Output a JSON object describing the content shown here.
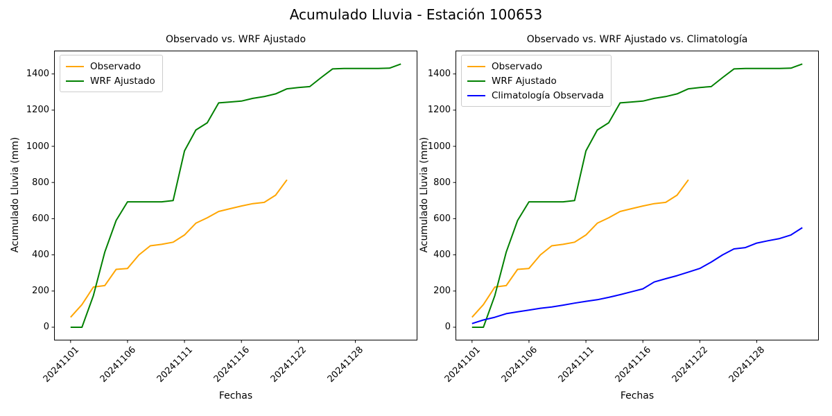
{
  "figure": {
    "suptitle": "Acumulado Lluvia - Estación 100653",
    "background": "#ffffff",
    "spine_color": "#000000",
    "legend_border_color": "#cccccc"
  },
  "chart_data": [
    {
      "type": "line",
      "title": "Observado vs. WRF Ajustado",
      "xlabel": "Fechas",
      "ylabel": "Acumulado Lluvia (mm)",
      "ylim": [
        -73,
        1529
      ],
      "xlim": [
        -1.45,
        30.45
      ],
      "grid": false,
      "legend_position": "upper left",
      "y_ticks": [
        0,
        200,
        400,
        600,
        800,
        1000,
        1200,
        1400
      ],
      "x_ticks": [
        {
          "pos": 0,
          "label": "20241101"
        },
        {
          "pos": 5,
          "label": "20241106"
        },
        {
          "pos": 10,
          "label": "20241111"
        },
        {
          "pos": 15,
          "label": "20241116"
        },
        {
          "pos": 20,
          "label": "20241122"
        },
        {
          "pos": 25,
          "label": "20241128"
        }
      ],
      "series": [
        {
          "name": "Observado",
          "color": "#FFA500",
          "x": [
            0,
            1,
            2,
            3,
            4,
            5,
            6,
            7,
            8,
            9,
            10,
            11,
            12,
            13,
            14,
            15,
            16,
            17,
            18,
            19
          ],
          "y": [
            55,
            125,
            222,
            230,
            320,
            325,
            400,
            450,
            458,
            470,
            510,
            575,
            605,
            640,
            655,
            670,
            683,
            690,
            730,
            815
          ]
        },
        {
          "name": "WRF Ajustado",
          "color": "#008000",
          "x": [
            0,
            1,
            2,
            3,
            4,
            5,
            6,
            7,
            8,
            9,
            10,
            11,
            12,
            13,
            14,
            15,
            16,
            17,
            18,
            19,
            20,
            21,
            22,
            23,
            24,
            25,
            26,
            27,
            28,
            29
          ],
          "y": [
            0,
            0,
            175,
            415,
            590,
            693,
            693,
            693,
            693,
            700,
            975,
            1090,
            1130,
            1240,
            1245,
            1250,
            1265,
            1275,
            1290,
            1318,
            1325,
            1330,
            1380,
            1428,
            1430,
            1430,
            1430,
            1430,
            1432,
            1455
          ]
        }
      ]
    },
    {
      "type": "line",
      "title": "Observado vs. WRF Ajustado vs. Climatología",
      "xlabel": "Fechas",
      "ylabel": "Acumulado Lluvia (mm)",
      "ylim": [
        -73,
        1529
      ],
      "xlim": [
        -1.45,
        30.45
      ],
      "grid": false,
      "legend_position": "upper left",
      "y_ticks": [
        0,
        200,
        400,
        600,
        800,
        1000,
        1200,
        1400
      ],
      "x_ticks": [
        {
          "pos": 0,
          "label": "20241101"
        },
        {
          "pos": 5,
          "label": "20241106"
        },
        {
          "pos": 10,
          "label": "20241111"
        },
        {
          "pos": 15,
          "label": "20241116"
        },
        {
          "pos": 20,
          "label": "20241122"
        },
        {
          "pos": 25,
          "label": "20241128"
        }
      ],
      "series": [
        {
          "name": "Observado",
          "color": "#FFA500",
          "x": [
            0,
            1,
            2,
            3,
            4,
            5,
            6,
            7,
            8,
            9,
            10,
            11,
            12,
            13,
            14,
            15,
            16,
            17,
            18,
            19
          ],
          "y": [
            55,
            125,
            222,
            230,
            320,
            325,
            400,
            450,
            458,
            470,
            510,
            575,
            605,
            640,
            655,
            670,
            683,
            690,
            730,
            815
          ]
        },
        {
          "name": "WRF Ajustado",
          "color": "#008000",
          "x": [
            0,
            1,
            2,
            3,
            4,
            5,
            6,
            7,
            8,
            9,
            10,
            11,
            12,
            13,
            14,
            15,
            16,
            17,
            18,
            19,
            20,
            21,
            22,
            23,
            24,
            25,
            26,
            27,
            28,
            29
          ],
          "y": [
            0,
            0,
            175,
            415,
            590,
            693,
            693,
            693,
            693,
            700,
            975,
            1090,
            1130,
            1240,
            1245,
            1250,
            1265,
            1275,
            1290,
            1318,
            1325,
            1330,
            1380,
            1428,
            1430,
            1430,
            1430,
            1430,
            1432,
            1455
          ]
        },
        {
          "name": "Climatología Observada",
          "color": "#0000FF",
          "x": [
            0,
            1,
            2,
            3,
            4,
            5,
            6,
            7,
            8,
            9,
            10,
            11,
            12,
            13,
            14,
            15,
            16,
            17,
            18,
            19,
            20,
            21,
            22,
            23,
            24,
            25,
            26,
            27,
            28,
            29
          ],
          "y": [
            20,
            40,
            55,
            75,
            85,
            95,
            105,
            112,
            122,
            133,
            143,
            152,
            165,
            180,
            196,
            212,
            250,
            268,
            285,
            305,
            325,
            360,
            400,
            433,
            440,
            465,
            478,
            490,
            510,
            550
          ]
        }
      ]
    }
  ]
}
